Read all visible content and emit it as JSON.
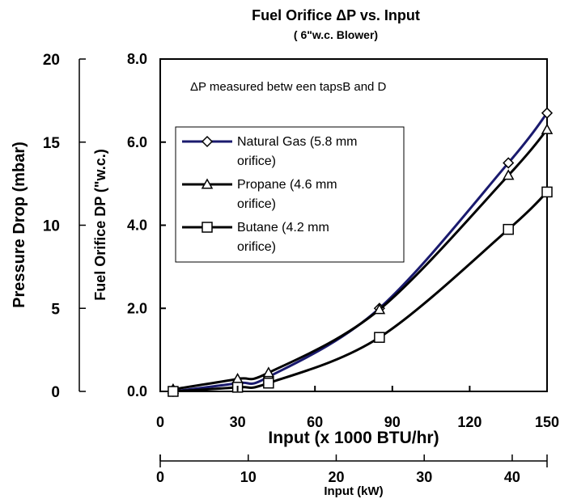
{
  "chart_data": {
    "type": "line",
    "title": "Fuel Orifice ΔP vs. Input",
    "subtitle": "( 6\"w.c. Blower)",
    "annotation": "ΔP measured betw een tapsB and D",
    "xlabel": "Input (x 1000 BTU/hr)",
    "xlabel2": "Input (kW)",
    "ylabel": "Fuel Orifice DP (\"w.c.)",
    "ylabel2": "Pressure Drop (mbar)",
    "xlim": [
      0,
      150
    ],
    "ylim": [
      0,
      8
    ],
    "ylim2": [
      0,
      20
    ],
    "xlim2_kw": [
      0,
      43.96
    ],
    "x_ticks": [
      "0",
      "30",
      "60",
      "90",
      "120",
      "150"
    ],
    "y_ticks": [
      "0.0",
      "2.0",
      "4.0",
      "6.0",
      "8.0"
    ],
    "y2_ticks": [
      "0",
      "5",
      "10",
      "15",
      "20"
    ],
    "x2_ticks": [
      "0",
      "10",
      "20",
      "30",
      "40"
    ],
    "grid": false,
    "legend_position": "upper-left",
    "series": [
      {
        "name": "Natural Gas",
        "legend_lines": [
          "Natural Gas   (5.8 mm",
          "orifice)"
        ],
        "color": "#1a1a6e",
        "marker": "diamond",
        "x": [
          5,
          30,
          42,
          85,
          135,
          150
        ],
        "y": [
          0.0,
          0.2,
          0.35,
          2.0,
          5.5,
          6.7
        ]
      },
      {
        "name": "Propane",
        "legend_lines": [
          "Propane         (4.6 mm",
          "orifice)"
        ],
        "color": "#000000",
        "marker": "triangle",
        "x": [
          5,
          30,
          42,
          85,
          135,
          150
        ],
        "y": [
          0.05,
          0.3,
          0.45,
          1.97,
          5.2,
          6.3
        ]
      },
      {
        "name": "Butane",
        "legend_lines": [
          "Butane            (4.2 mm",
          "orifice)"
        ],
        "color": "#000000",
        "marker": "square",
        "x": [
          5,
          30,
          42,
          85,
          135,
          150
        ],
        "y": [
          0.0,
          0.1,
          0.2,
          1.3,
          3.9,
          4.8
        ]
      }
    ]
  }
}
